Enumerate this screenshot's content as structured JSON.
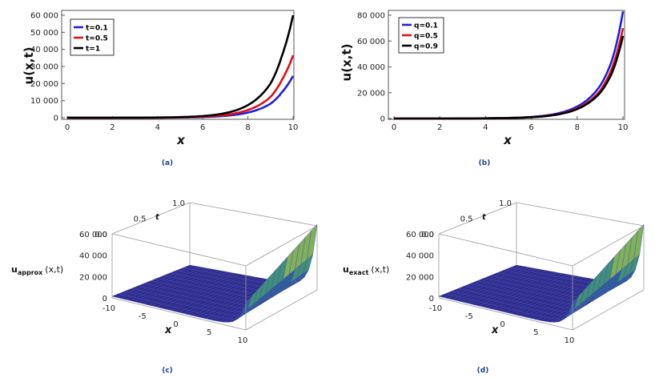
{
  "chart_data": [
    {
      "id": "a",
      "type": "line",
      "caption": "(a)",
      "xlabel": "x",
      "ylabel": "u(x,t)",
      "xlim": [
        0,
        10
      ],
      "ylim": [
        0,
        60000
      ],
      "xticks": [
        0,
        2,
        4,
        6,
        8,
        10
      ],
      "yticks": [
        0,
        10000,
        20000,
        30000,
        40000,
        50000,
        60000
      ],
      "ytick_labels": [
        "0",
        "10 000",
        "20 000",
        "30 000",
        "40 000",
        "50 000",
        "60 000"
      ],
      "legend_position": "top-left",
      "series": [
        {
          "name": "t=0.1",
          "color": "#1f1fe0",
          "values": [
            [
              0,
              1
            ],
            [
              2,
              7
            ],
            [
              4,
              55
            ],
            [
              6,
              400
            ],
            [
              7,
              1100
            ],
            [
              8,
              3000
            ],
            [
              8.5,
              5000
            ],
            [
              9,
              8200
            ],
            [
              9.5,
              14800
            ],
            [
              10,
              24500
            ]
          ]
        },
        {
          "name": "t=0.5",
          "color": "#dd1111",
          "values": [
            [
              0,
              2
            ],
            [
              2,
              11
            ],
            [
              4,
              80
            ],
            [
              6,
              600
            ],
            [
              7,
              1650
            ],
            [
              8,
              4500
            ],
            [
              8.5,
              7400
            ],
            [
              9,
              12200
            ],
            [
              9.5,
              22000
            ],
            [
              10,
              36500
            ]
          ]
        },
        {
          "name": "t=1",
          "color": "#000000",
          "values": [
            [
              0,
              3
            ],
            [
              2,
              18
            ],
            [
              4,
              130
            ],
            [
              6,
              990
            ],
            [
              7,
              2700
            ],
            [
              8,
              7400
            ],
            [
              8.5,
              12200
            ],
            [
              9,
              20000
            ],
            [
              9.5,
              36000
            ],
            [
              10,
              60000
            ]
          ]
        }
      ]
    },
    {
      "id": "b",
      "type": "line",
      "caption": "(b)",
      "xlabel": "x",
      "ylabel": "u(x,t)",
      "xlim": [
        0,
        10
      ],
      "ylim": [
        0,
        80000
      ],
      "xticks": [
        0,
        2,
        4,
        6,
        8,
        10
      ],
      "yticks": [
        0,
        20000,
        40000,
        60000,
        80000
      ],
      "ytick_labels": [
        "0",
        "20 000",
        "40 000",
        "60 000",
        "80 000"
      ],
      "legend_position": "top-left",
      "series": [
        {
          "name": "q=0.1",
          "color": "#1f1fe0",
          "values": [
            [
              0,
              3
            ],
            [
              2,
              23
            ],
            [
              4,
              170
            ],
            [
              6,
              1250
            ],
            [
              7,
              3400
            ],
            [
              8,
              9300
            ],
            [
              8.5,
              15300
            ],
            [
              9,
              25300
            ],
            [
              9.5,
              44000
            ],
            [
              10,
              83000
            ]
          ]
        },
        {
          "name": "q=0.5",
          "color": "#dd1111",
          "values": [
            [
              0,
              3
            ],
            [
              2,
              20
            ],
            [
              4,
              145
            ],
            [
              6,
              1070
            ],
            [
              7,
              2900
            ],
            [
              8,
              7900
            ],
            [
              8.5,
              13000
            ],
            [
              9,
              21500
            ],
            [
              9.5,
              38000
            ],
            [
              10,
              70000
            ]
          ]
        },
        {
          "name": "q=0.9",
          "color": "#000000",
          "values": [
            [
              0,
              3
            ],
            [
              2,
              18
            ],
            [
              4,
              135
            ],
            [
              6,
              990
            ],
            [
              7,
              2700
            ],
            [
              8,
              7300
            ],
            [
              8.5,
              12100
            ],
            [
              9,
              19900
            ],
            [
              9.5,
              34500
            ],
            [
              10,
              64000
            ]
          ]
        }
      ]
    },
    {
      "id": "c",
      "type": "surface3d",
      "caption": "(c)",
      "zlabel": "u",
      "zlabel_sub": "approx",
      "zlabel_args": "(x,t)",
      "xlabel": "x",
      "tlabel": "t",
      "x_ticks": [
        "-10",
        "-5",
        "0",
        "5",
        "10"
      ],
      "t_ticks": [
        "0.0",
        "0.5",
        "1.0"
      ],
      "z_ticks": [
        "0",
        "20 000",
        "40 000",
        "60 000"
      ],
      "xlim": [
        -10,
        10
      ],
      "tlim": [
        0,
        1
      ],
      "zlim": [
        0,
        60000
      ]
    },
    {
      "id": "d",
      "type": "surface3d",
      "caption": "(d)",
      "zlabel": "u",
      "zlabel_sub": "exact",
      "zlabel_args": "(x,t)",
      "xlabel": "x",
      "tlabel": "t",
      "x_ticks": [
        "-10",
        "-5",
        "0",
        "5",
        "10"
      ],
      "t_ticks": [
        "0.0",
        "0.5",
        "1.0"
      ],
      "z_ticks": [
        "0",
        "20 000",
        "40 000",
        "60 000"
      ],
      "xlim": [
        -10,
        10
      ],
      "tlim": [
        0,
        1
      ],
      "zlim": [
        0,
        60000
      ]
    }
  ]
}
